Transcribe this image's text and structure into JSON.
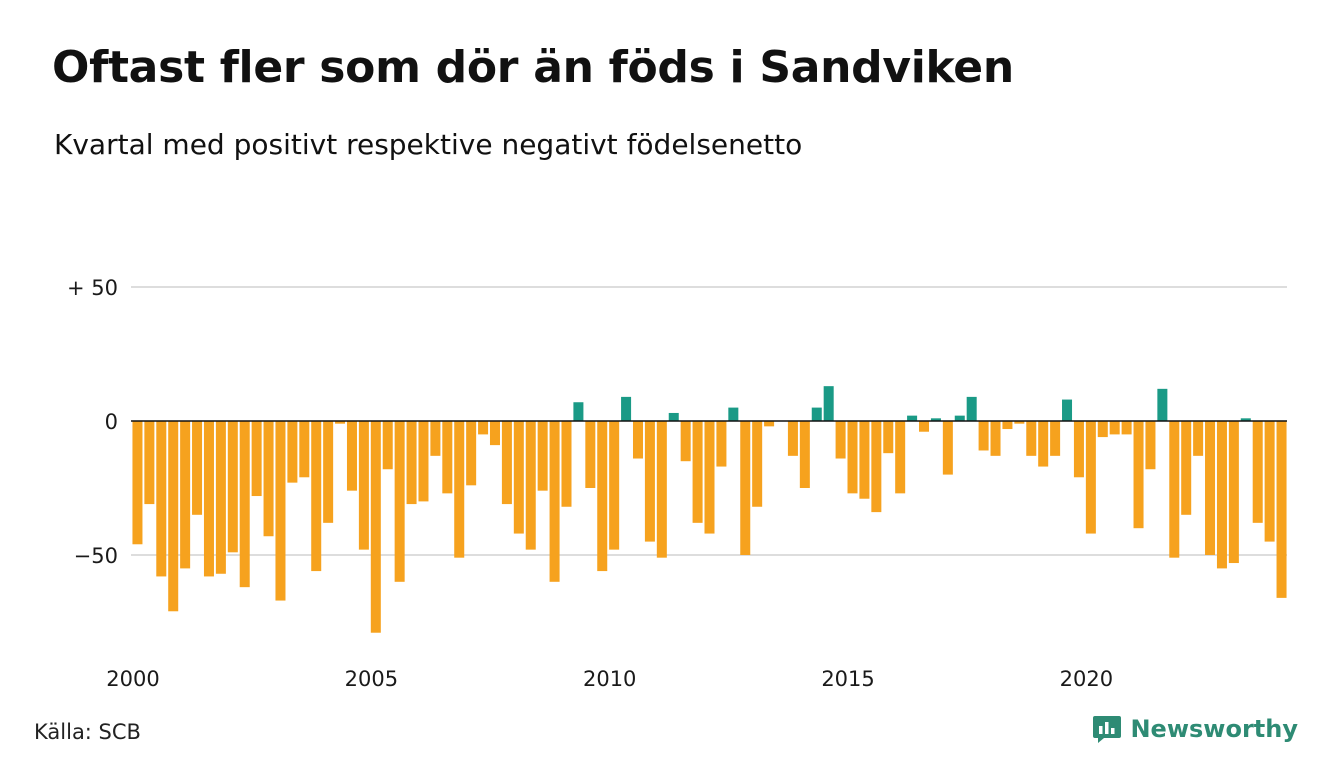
{
  "header": {
    "title": "Oftast fler som dör än föds i Sandviken",
    "subtitle": "Kvartal med positivt respektive negativt födelsenetto"
  },
  "footer": {
    "source": "Källa: SCB",
    "brand": "Newsworthy",
    "brand_icon": "bar-chart-speech-bubble-icon"
  },
  "colors": {
    "positive": "#1a9a86",
    "negative": "#f6a21e",
    "brand": "#2e8b74",
    "grid": "#dddddd"
  },
  "chart_data": {
    "type": "bar",
    "title": "Oftast fler som dör än föds i Sandviken",
    "subtitle": "Kvartal med positivt respektive negativt födelsenetto",
    "x_start": 2000,
    "x_end": 2024.75,
    "periods_per_year": 4,
    "ylim": [
      -80,
      55
    ],
    "y_ticks": [
      {
        "value": 50,
        "label": "+ 50"
      },
      {
        "value": 0,
        "label": "0"
      },
      {
        "value": -50,
        "label": "−50"
      }
    ],
    "x_ticks": [
      {
        "value": 2000,
        "label": "2000"
      },
      {
        "value": 2005,
        "label": "2005"
      },
      {
        "value": 2010,
        "label": "2010"
      },
      {
        "value": 2015,
        "label": "2015"
      },
      {
        "value": 2020,
        "label": "2020"
      }
    ],
    "grid": true,
    "values": [
      -46,
      -31,
      -58,
      -71,
      -55,
      -35,
      -58,
      -57,
      -49,
      -62,
      -28,
      -43,
      -67,
      -23,
      -21,
      -56,
      -38,
      -1,
      -26,
      -48,
      -79,
      -18,
      -60,
      -31,
      -30,
      -13,
      -27,
      -51,
      -24,
      -5,
      -9,
      -31,
      -42,
      -48,
      -26,
      -60,
      -32,
      7,
      -25,
      -56,
      -48,
      9,
      -14,
      -45,
      -51,
      3,
      -15,
      -38,
      -42,
      -17,
      5,
      -50,
      -32,
      -2,
      0,
      -13,
      -25,
      5,
      13,
      -14,
      -27,
      -29,
      -34,
      -12,
      -27,
      2,
      -4,
      1,
      -20,
      2,
      9,
      -11,
      -13,
      -3,
      -1,
      -13,
      -17,
      -13,
      8,
      -21,
      -42,
      -6,
      -5,
      -5,
      -40,
      -18,
      12,
      -51,
      -35,
      -13,
      -50,
      -55,
      -53,
      1,
      -38,
      -45,
      -66
    ]
  }
}
